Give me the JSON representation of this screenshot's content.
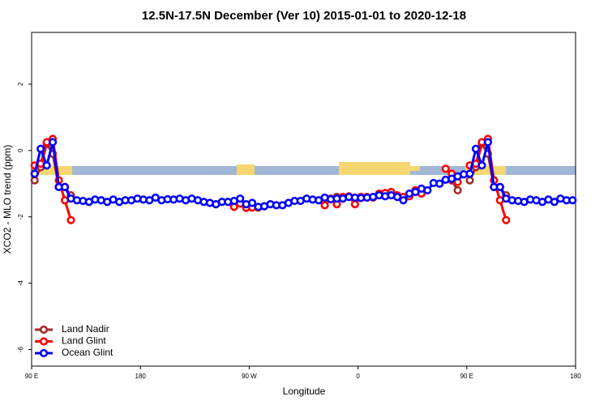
{
  "chart_data": {
    "type": "line",
    "title": "12.5N-17.5N December (Ver 10)   2015-01-01 to 2020-12-18",
    "xlabel": "Longitude",
    "ylabel": "XCO2 - MLO trend (ppm)",
    "xlim": [
      90,
      540
    ],
    "xticks": [
      {
        "value": 90,
        "label": "90 E"
      },
      {
        "value": 180,
        "label": "180"
      },
      {
        "value": 270,
        "label": "90 W"
      },
      {
        "value": 360,
        "label": "0"
      },
      {
        "value": 450,
        "label": "90 E"
      },
      {
        "value": 540,
        "label": "180"
      }
    ],
    "ylim": [
      -6.5,
      3.56
    ],
    "yticks": [
      2,
      0,
      -2,
      -4,
      -6
    ],
    "legend": "bottomleft",
    "x": [
      92.5,
      97.5,
      102.5,
      107.5,
      112.5,
      117.5,
      122.5,
      127.5,
      132.5,
      137.5,
      142.5,
      147.5,
      152.5,
      157.5,
      162.5,
      167.5,
      172.5,
      177.5,
      182.5,
      187.5,
      192.5,
      197.5,
      202.5,
      207.5,
      212.5,
      217.5,
      222.5,
      227.5,
      232.5,
      237.5,
      242.5,
      247.5,
      252.5,
      257.5,
      262.5,
      267.5,
      272.5,
      277.5,
      282.5,
      287.5,
      292.5,
      297.5,
      302.5,
      307.5,
      312.5,
      317.5,
      322.5,
      327.5,
      332.5,
      337.5,
      342.5,
      347.5,
      352.5,
      357.5,
      362.5,
      367.5,
      372.5,
      377.5,
      382.5,
      387.5,
      392.5,
      397.5,
      402.5,
      407.5,
      412.5,
      417.5,
      422.5,
      427.5,
      432.5,
      437.5,
      442.5,
      447.5,
      452.5,
      457.5,
      462.5,
      467.5,
      472.5,
      477.5,
      482.5,
      487.5,
      492.5,
      497.5,
      502.5,
      507.5,
      512.5,
      517.5,
      522.5,
      527.5,
      532.5,
      537.5
    ],
    "series": [
      {
        "name": "Land Nadir",
        "color": "#a52a2a",
        "values": [
          -0.9,
          -0.5,
          0.2,
          -0.1,
          -1.1,
          -1.1,
          -1.35,
          null,
          null,
          null,
          null,
          null,
          null,
          null,
          null,
          null,
          null,
          null,
          null,
          null,
          null,
          null,
          null,
          null,
          null,
          null,
          null,
          null,
          null,
          null,
          null,
          null,
          null,
          null,
          null,
          null,
          null,
          null,
          null,
          null,
          null,
          null,
          null,
          null,
          null,
          null,
          null,
          null,
          null,
          null,
          -1.4,
          null,
          null,
          null,
          null,
          null,
          null,
          null,
          null,
          null,
          null,
          null,
          null,
          -1.25,
          null,
          null,
          null,
          null,
          null,
          -0.9,
          -1.2,
          null,
          -0.9,
          -0.5,
          0.2,
          -0.1,
          -1.1,
          -1.1,
          -1.35,
          null,
          null,
          null,
          null,
          null,
          null,
          null,
          null,
          null,
          null,
          null
        ]
      },
      {
        "name": "Land Glint",
        "color": "#ff0000",
        "values": [
          -0.45,
          -0.4,
          0.25,
          0.35,
          -0.9,
          -1.5,
          -2.1,
          null,
          null,
          null,
          null,
          null,
          null,
          null,
          null,
          null,
          null,
          null,
          null,
          null,
          null,
          null,
          null,
          null,
          null,
          null,
          null,
          null,
          null,
          null,
          null,
          null,
          null,
          -1.7,
          -1.6,
          -1.73,
          -1.72,
          -1.72,
          null,
          null,
          null,
          null,
          null,
          null,
          null,
          null,
          null,
          null,
          -1.65,
          -1.45,
          -1.62,
          -1.4,
          -1.38,
          -1.62,
          -1.4,
          -1.4,
          -1.42,
          -1.3,
          -1.28,
          -1.25,
          -1.35,
          -1.4,
          -1.38,
          -1.2,
          -1.3,
          null,
          null,
          null,
          -0.55,
          -0.7,
          -0.95,
          null,
          -0.45,
          -0.4,
          0.25,
          0.35,
          -0.9,
          -1.5,
          -2.1,
          null,
          null,
          null,
          null,
          null,
          null,
          null,
          null,
          null,
          null,
          null
        ]
      },
      {
        "name": "Ocean Glint",
        "color": "#0000ff",
        "values": [
          -0.7,
          0.05,
          -0.45,
          0.25,
          -1.1,
          -1.1,
          -1.45,
          -1.5,
          -1.52,
          -1.55,
          -1.48,
          -1.5,
          -1.55,
          -1.48,
          -1.55,
          -1.5,
          -1.5,
          -1.45,
          -1.48,
          -1.5,
          -1.42,
          -1.5,
          -1.47,
          -1.48,
          -1.45,
          -1.5,
          -1.45,
          -1.5,
          -1.55,
          -1.58,
          -1.62,
          -1.55,
          -1.55,
          -1.52,
          -1.45,
          -1.62,
          -1.58,
          -1.7,
          -1.68,
          -1.62,
          -1.65,
          -1.65,
          -1.58,
          -1.52,
          -1.52,
          -1.45,
          -1.48,
          -1.5,
          -1.42,
          -1.47,
          -1.45,
          -1.45,
          -1.4,
          -1.42,
          -1.43,
          -1.42,
          -1.4,
          -1.35,
          -1.38,
          -1.35,
          -1.4,
          -1.5,
          -1.3,
          -1.25,
          -1.15,
          -1.2,
          -0.98,
          -1.0,
          -0.88,
          -0.85,
          -0.78,
          -0.72,
          -0.7,
          0.05,
          -0.45,
          0.25,
          -1.1,
          -1.1,
          -1.45,
          -1.5,
          -1.52,
          -1.55,
          -1.48,
          -1.5,
          -1.55,
          -1.48,
          -1.55,
          -1.45,
          -1.5,
          -1.5
        ]
      }
    ]
  }
}
